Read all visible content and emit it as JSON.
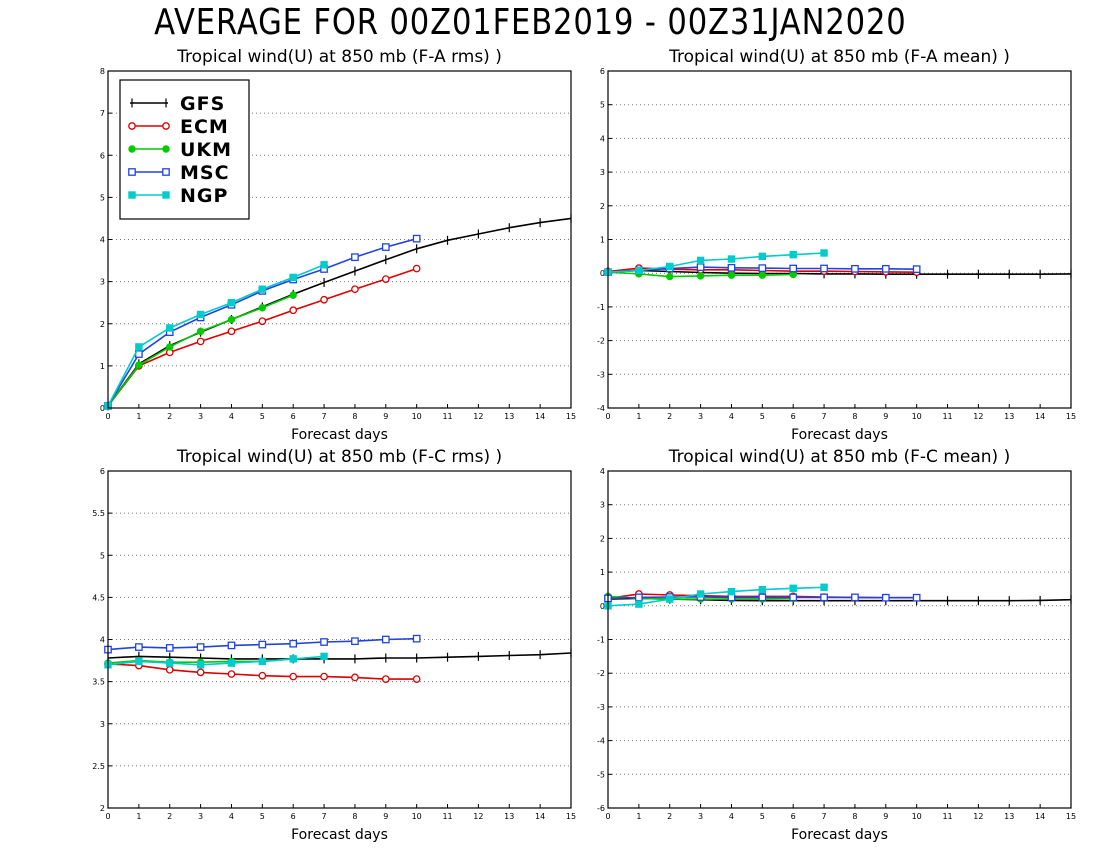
{
  "title": "AVERAGE FOR 00Z01FEB2019 - 00Z31JAN2020",
  "legend": [
    "GFS",
    "ECM",
    "UKM",
    "MSC",
    "NGP"
  ],
  "colors": {
    "GFS": "#000000",
    "ECM": "#dd0000",
    "UKM": "#00cc00",
    "MSC": "#2244dd",
    "NGP": "#00cccc"
  },
  "markers": {
    "GFS": "plus",
    "ECM": "open-circle",
    "UKM": "filled-circle",
    "MSC": "open-square",
    "NGP": "filled-square"
  },
  "chart_data": [
    {
      "type": "line",
      "title": "Tropical wind(U) at 850 mb (F-A rms) )",
      "xlabel": "Forecast days",
      "ylabel": "",
      "xlim": [
        0,
        15
      ],
      "ylim": [
        0,
        8
      ],
      "yticks": [
        0,
        1,
        2,
        3,
        4,
        5,
        6,
        7,
        8
      ],
      "ytick_labels": [
        "0",
        "1",
        "2",
        "3",
        "4",
        "5",
        "6",
        "7",
        "8"
      ],
      "grid": "horizontal dotted",
      "legend_position": "top-left",
      "series": [
        {
          "name": "GFS",
          "x": [
            0,
            1,
            2,
            3,
            4,
            5,
            6,
            7,
            8,
            9,
            10,
            11,
            12,
            13,
            14,
            15
          ],
          "values": [
            0.05,
            1.05,
            1.48,
            1.8,
            2.1,
            2.4,
            2.7,
            2.98,
            3.25,
            3.52,
            3.78,
            3.98,
            4.13,
            4.28,
            4.4,
            4.5
          ]
        },
        {
          "name": "ECM",
          "x": [
            0,
            1,
            2,
            3,
            4,
            5,
            6,
            7,
            8,
            9,
            10
          ],
          "values": [
            0.05,
            1.0,
            1.32,
            1.58,
            1.82,
            2.06,
            2.32,
            2.57,
            2.82,
            3.06,
            3.31
          ]
        },
        {
          "name": "UKM",
          "x": [
            0,
            1,
            2,
            3,
            4,
            5,
            6
          ],
          "values": [
            0.05,
            1.02,
            1.45,
            1.82,
            2.1,
            2.38,
            2.68
          ]
        },
        {
          "name": "MSC",
          "x": [
            0,
            1,
            2,
            3,
            4,
            5,
            6,
            7,
            8,
            9,
            10
          ],
          "values": [
            0.05,
            1.28,
            1.8,
            2.15,
            2.45,
            2.78,
            3.05,
            3.3,
            3.58,
            3.82,
            4.02
          ]
        },
        {
          "name": "NGP",
          "x": [
            0,
            1,
            2,
            3,
            4,
            5,
            6,
            7
          ],
          "values": [
            0.05,
            1.45,
            1.9,
            2.22,
            2.5,
            2.82,
            3.1,
            3.4
          ]
        }
      ]
    },
    {
      "type": "line",
      "title": "Tropical wind(U) at 850 mb (F-A mean) )",
      "xlabel": "Forecast days",
      "ylabel": "",
      "xlim": [
        0,
        15
      ],
      "ylim": [
        -4,
        6
      ],
      "yticks": [
        -4,
        -3,
        -2,
        -1,
        0,
        1,
        2,
        3,
        4,
        5,
        6
      ],
      "ytick_labels": [
        "-4",
        "-3",
        "-2",
        "-1",
        "0",
        "1",
        "2",
        "3",
        "4",
        "5",
        "6"
      ],
      "grid": "horizontal dotted",
      "series": [
        {
          "name": "GFS",
          "x": [
            0,
            1,
            2,
            3,
            4,
            5,
            6,
            7,
            8,
            9,
            10,
            11,
            12,
            13,
            14,
            15
          ],
          "values": [
            0.05,
            0.08,
            0.05,
            0.02,
            0.0,
            -0.01,
            -0.01,
            -0.02,
            -0.02,
            -0.03,
            -0.03,
            -0.03,
            -0.03,
            -0.03,
            -0.03,
            -0.02
          ]
        },
        {
          "name": "ECM",
          "x": [
            0,
            1,
            2,
            3,
            4,
            5,
            6,
            7,
            8,
            9,
            10
          ],
          "values": [
            0.05,
            0.15,
            0.12,
            0.1,
            0.1,
            0.08,
            0.06,
            0.06,
            0.05,
            0.04,
            0.03
          ]
        },
        {
          "name": "UKM",
          "x": [
            0,
            1,
            2,
            3,
            4,
            5,
            6
          ],
          "values": [
            0.03,
            -0.02,
            -0.1,
            -0.08,
            -0.06,
            -0.06,
            -0.04
          ]
        },
        {
          "name": "MSC",
          "x": [
            0,
            1,
            2,
            3,
            4,
            5,
            6,
            7,
            8,
            9,
            10
          ],
          "values": [
            0.03,
            0.08,
            0.14,
            0.18,
            0.16,
            0.15,
            0.14,
            0.14,
            0.13,
            0.13,
            0.12
          ]
        },
        {
          "name": "NGP",
          "x": [
            0,
            1,
            2,
            3,
            4,
            5,
            6,
            7
          ],
          "values": [
            0.03,
            0.08,
            0.2,
            0.38,
            0.42,
            0.5,
            0.55,
            0.6
          ]
        }
      ]
    },
    {
      "type": "line",
      "title": "Tropical wind(U) at 850 mb (F-C rms) )",
      "xlabel": "Forecast days",
      "ylabel": "",
      "xlim": [
        0,
        15
      ],
      "ylim": [
        2,
        6
      ],
      "yticks": [
        2,
        2.5,
        3,
        3.5,
        4,
        4.5,
        5,
        5.5,
        6
      ],
      "ytick_labels": [
        "2",
        "2.5",
        "3",
        "3.5",
        "4",
        "4.5",
        "5",
        "5.5",
        "6"
      ],
      "grid": "horizontal dotted",
      "series": [
        {
          "name": "GFS",
          "x": [
            0,
            1,
            2,
            3,
            4,
            5,
            6,
            7,
            8,
            9,
            10,
            11,
            12,
            13,
            14,
            15
          ],
          "values": [
            3.78,
            3.8,
            3.79,
            3.78,
            3.77,
            3.77,
            3.77,
            3.77,
            3.77,
            3.78,
            3.78,
            3.79,
            3.8,
            3.81,
            3.82,
            3.84
          ]
        },
        {
          "name": "ECM",
          "x": [
            0,
            1,
            2,
            3,
            4,
            5,
            6,
            7,
            8,
            9,
            10
          ],
          "values": [
            3.71,
            3.69,
            3.64,
            3.61,
            3.59,
            3.57,
            3.56,
            3.56,
            3.55,
            3.53,
            3.53
          ]
        },
        {
          "name": "UKM",
          "x": [
            0,
            1,
            2,
            3,
            4,
            5,
            6
          ],
          "values": [
            3.72,
            3.75,
            3.73,
            3.73,
            3.74,
            3.74,
            3.77
          ]
        },
        {
          "name": "MSC",
          "x": [
            0,
            1,
            2,
            3,
            4,
            5,
            6,
            7,
            8,
            9,
            10
          ],
          "values": [
            3.88,
            3.91,
            3.9,
            3.91,
            3.93,
            3.94,
            3.95,
            3.97,
            3.98,
            4.0,
            4.01
          ]
        },
        {
          "name": "NGP",
          "x": [
            0,
            1,
            2,
            3,
            4,
            5,
            6,
            7
          ],
          "values": [
            3.7,
            3.74,
            3.72,
            3.7,
            3.72,
            3.74,
            3.77,
            3.8
          ]
        }
      ]
    },
    {
      "type": "line",
      "title": "Tropical wind(U) at 850 mb (F-C mean) )",
      "xlabel": "Forecast days",
      "ylabel": "",
      "xlim": [
        0,
        15
      ],
      "ylim": [
        -6,
        4
      ],
      "yticks": [
        -6,
        -5,
        -4,
        -3,
        -2,
        -1,
        0,
        1,
        2,
        3,
        4
      ],
      "ytick_labels": [
        "-6",
        "-5",
        "-4",
        "-3",
        "-2",
        "-1",
        "0",
        "1",
        "2",
        "3",
        "4"
      ],
      "grid": "horizontal dotted",
      "series": [
        {
          "name": "GFS",
          "x": [
            0,
            1,
            2,
            3,
            4,
            5,
            6,
            7,
            8,
            9,
            10,
            11,
            12,
            13,
            14,
            15
          ],
          "values": [
            0.2,
            0.22,
            0.2,
            0.18,
            0.16,
            0.15,
            0.15,
            0.15,
            0.15,
            0.15,
            0.15,
            0.15,
            0.15,
            0.15,
            0.16,
            0.18
          ]
        },
        {
          "name": "ECM",
          "x": [
            0,
            1,
            2,
            3,
            4,
            5,
            6,
            7,
            8,
            9,
            10
          ],
          "values": [
            0.22,
            0.35,
            0.32,
            0.3,
            0.28,
            0.28,
            0.28,
            0.26,
            0.25,
            0.24,
            0.24
          ]
        },
        {
          "name": "UKM",
          "x": [
            0,
            1,
            2,
            3,
            4,
            5,
            6
          ],
          "values": [
            0.28,
            0.22,
            0.2,
            0.2,
            0.2,
            0.2,
            0.22
          ]
        },
        {
          "name": "MSC",
          "x": [
            0,
            1,
            2,
            3,
            4,
            5,
            6,
            7,
            8,
            9,
            10
          ],
          "values": [
            0.22,
            0.25,
            0.26,
            0.26,
            0.25,
            0.25,
            0.25,
            0.25,
            0.25,
            0.24,
            0.24
          ]
        },
        {
          "name": "NGP",
          "x": [
            0,
            1,
            2,
            3,
            4,
            5,
            6,
            7
          ],
          "values": [
            0.0,
            0.05,
            0.2,
            0.35,
            0.42,
            0.48,
            0.52,
            0.55
          ]
        }
      ]
    }
  ]
}
